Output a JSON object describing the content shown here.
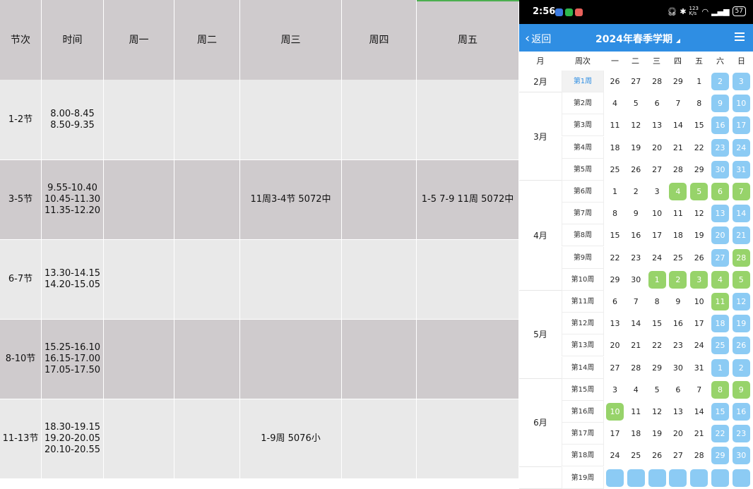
{
  "timetable": {
    "headers": [
      "节次",
      "时间",
      "周一",
      "周二",
      "周三",
      "周四",
      "周五"
    ],
    "rows": [
      {
        "period": "1-2节",
        "times": [
          "8.00-8.45",
          "8.50-9.35"
        ],
        "mon": "",
        "tue": "",
        "wed": "",
        "thu": "",
        "fri": ""
      },
      {
        "period": "3-5节",
        "times": [
          "9.55-10.40",
          "10.45-11.30",
          "11.35-12.20"
        ],
        "mon": "",
        "tue": "",
        "wed": "11周3-4节 5072中",
        "thu": "",
        "fri": "1-5 7-9 11周 5072中"
      },
      {
        "period": "6-7节",
        "times": [
          "13.30-14.15",
          "14.20-15.05"
        ],
        "mon": "",
        "tue": "",
        "wed": "",
        "thu": "",
        "fri": ""
      },
      {
        "period": "8-10节",
        "times": [
          "15.25-16.10",
          "16.15-17.00",
          "17.05-17.50"
        ],
        "mon": "",
        "tue": "",
        "wed": "",
        "thu": "",
        "fri": ""
      },
      {
        "period": "11-13节",
        "times": [
          "18.30-19.15",
          "19.20-20.05",
          "20.10-20.55"
        ],
        "mon": "",
        "tue": "",
        "wed": "1-9周 5076小",
        "thu": "",
        "fri": ""
      }
    ]
  },
  "phone": {
    "status": {
      "time": "2:56",
      "network": "123 K/s",
      "battery": "57"
    },
    "nav": {
      "back_label": "返回",
      "title": "2024年春季学期",
      "title_caret": "◢"
    },
    "calendar": {
      "headers": {
        "month": "月",
        "week": "周次",
        "days": [
          "一",
          "二",
          "三",
          "四",
          "五",
          "六",
          "日"
        ]
      },
      "months": [
        {
          "label": "2月",
          "weeks": 1
        },
        {
          "label": "3月",
          "weeks": 4
        },
        {
          "label": "4月",
          "weeks": 5
        },
        {
          "label": "5月",
          "weeks": 4
        },
        {
          "label": "6月",
          "weeks": 4
        },
        {
          "label": "",
          "weeks": 1
        }
      ],
      "weeks": [
        {
          "label": "第1周",
          "days": [
            "26",
            "27",
            "28",
            "29",
            "1",
            "2",
            "3"
          ],
          "marks": [
            "",
            "",
            "",
            "",
            "",
            "blue",
            "blue"
          ]
        },
        {
          "label": "第2周",
          "days": [
            "4",
            "5",
            "6",
            "7",
            "8",
            "9",
            "10"
          ],
          "marks": [
            "",
            "",
            "",
            "",
            "",
            "blue",
            "blue"
          ]
        },
        {
          "label": "第3周",
          "days": [
            "11",
            "12",
            "13",
            "14",
            "15",
            "16",
            "17"
          ],
          "marks": [
            "",
            "",
            "",
            "",
            "",
            "blue",
            "blue"
          ]
        },
        {
          "label": "第4周",
          "days": [
            "18",
            "19",
            "20",
            "21",
            "22",
            "23",
            "24"
          ],
          "marks": [
            "",
            "",
            "",
            "",
            "",
            "blue",
            "blue"
          ]
        },
        {
          "label": "第5周",
          "days": [
            "25",
            "26",
            "27",
            "28",
            "29",
            "30",
            "31"
          ],
          "marks": [
            "",
            "",
            "",
            "",
            "",
            "blue",
            "blue"
          ]
        },
        {
          "label": "第6周",
          "days": [
            "1",
            "2",
            "3",
            "4",
            "5",
            "6",
            "7"
          ],
          "marks": [
            "",
            "",
            "",
            "green",
            "green",
            "green",
            "green"
          ]
        },
        {
          "label": "第7周",
          "days": [
            "8",
            "9",
            "10",
            "11",
            "12",
            "13",
            "14"
          ],
          "marks": [
            "",
            "",
            "",
            "",
            "",
            "blue",
            "blue"
          ]
        },
        {
          "label": "第8周",
          "days": [
            "15",
            "16",
            "17",
            "18",
            "19",
            "20",
            "21"
          ],
          "marks": [
            "",
            "",
            "",
            "",
            "",
            "blue",
            "blue"
          ]
        },
        {
          "label": "第9周",
          "days": [
            "22",
            "23",
            "24",
            "25",
            "26",
            "27",
            "28"
          ],
          "marks": [
            "",
            "",
            "",
            "",
            "",
            "blue",
            "green"
          ]
        },
        {
          "label": "第10周",
          "days": [
            "29",
            "30",
            "1",
            "2",
            "3",
            "4",
            "5"
          ],
          "marks": [
            "",
            "",
            "green",
            "green",
            "green",
            "green",
            "green"
          ]
        },
        {
          "label": "第11周",
          "days": [
            "6",
            "7",
            "8",
            "9",
            "10",
            "11",
            "12"
          ],
          "marks": [
            "",
            "",
            "",
            "",
            "",
            "green",
            "blue"
          ]
        },
        {
          "label": "第12周",
          "days": [
            "13",
            "14",
            "15",
            "16",
            "17",
            "18",
            "19"
          ],
          "marks": [
            "",
            "",
            "",
            "",
            "",
            "blue",
            "blue"
          ]
        },
        {
          "label": "第13周",
          "days": [
            "20",
            "21",
            "22",
            "23",
            "24",
            "25",
            "26"
          ],
          "marks": [
            "",
            "",
            "",
            "",
            "",
            "blue",
            "blue"
          ]
        },
        {
          "label": "第14周",
          "days": [
            "27",
            "28",
            "29",
            "30",
            "31",
            "1",
            "2"
          ],
          "marks": [
            "",
            "",
            "",
            "",
            "",
            "blue",
            "blue"
          ]
        },
        {
          "label": "第15周",
          "days": [
            "3",
            "4",
            "5",
            "6",
            "7",
            "8",
            "9"
          ],
          "marks": [
            "",
            "",
            "",
            "",
            "",
            "green",
            "green"
          ]
        },
        {
          "label": "第16周",
          "days": [
            "10",
            "11",
            "12",
            "13",
            "14",
            "15",
            "16"
          ],
          "marks": [
            "green",
            "",
            "",
            "",
            "",
            "blue",
            "blue"
          ]
        },
        {
          "label": "第17周",
          "days": [
            "17",
            "18",
            "19",
            "20",
            "21",
            "22",
            "23"
          ],
          "marks": [
            "",
            "",
            "",
            "",
            "",
            "blue",
            "blue"
          ]
        },
        {
          "label": "第18周",
          "days": [
            "24",
            "25",
            "26",
            "27",
            "28",
            "29",
            "30"
          ],
          "marks": [
            "",
            "",
            "",
            "",
            "",
            "blue",
            "blue"
          ]
        },
        {
          "label": "第19周",
          "days": [
            "",
            "",
            "",
            "",
            "",
            "",
            ""
          ],
          "marks": [
            "blue",
            "blue",
            "blue",
            "blue",
            "blue",
            "blue",
            "blue"
          ]
        }
      ],
      "colors": {
        "weekend": "#8ccbf4",
        "holiday": "#97d36a",
        "nav": "#2f8ee3"
      }
    }
  }
}
